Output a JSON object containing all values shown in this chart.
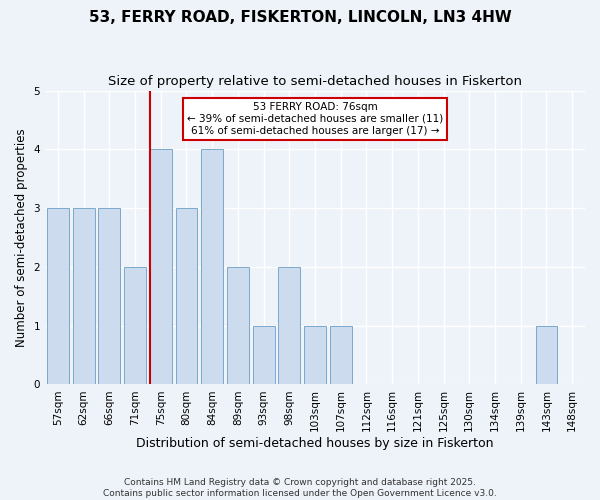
{
  "title": "53, FERRY ROAD, FISKERTON, LINCOLN, LN3 4HW",
  "subtitle": "Size of property relative to semi-detached houses in Fiskerton",
  "xlabel": "Distribution of semi-detached houses by size in Fiskerton",
  "ylabel": "Number of semi-detached properties",
  "categories": [
    "57sqm",
    "62sqm",
    "66sqm",
    "71sqm",
    "75sqm",
    "80sqm",
    "84sqm",
    "89sqm",
    "93sqm",
    "98sqm",
    "103sqm",
    "107sqm",
    "112sqm",
    "116sqm",
    "121sqm",
    "125sqm",
    "130sqm",
    "134sqm",
    "139sqm",
    "143sqm",
    "148sqm"
  ],
  "values": [
    3,
    3,
    3,
    2,
    4,
    3,
    4,
    2,
    1,
    2,
    1,
    1,
    0,
    0,
    0,
    0,
    0,
    0,
    0,
    1,
    0
  ],
  "bar_color": "#ccdcee",
  "bar_edge_color": "#7aa8cc",
  "background_color": "#eef3f9",
  "plot_bg_color": "#eef3f9",
  "property_line_idx": 4,
  "property_line_color": "#cc0000",
  "annotation_line1": "53 FERRY ROAD: 76sqm",
  "annotation_line2": "← 39% of semi-detached houses are smaller (11)",
  "annotation_line3": "61% of semi-detached houses are larger (17) →",
  "annotation_box_color": "#ffffff",
  "annotation_box_edge_color": "#cc0000",
  "ylim": [
    0,
    5
  ],
  "yticks": [
    0,
    1,
    2,
    3,
    4,
    5
  ],
  "footer_line1": "Contains HM Land Registry data © Crown copyright and database right 2025.",
  "footer_line2": "Contains public sector information licensed under the Open Government Licence v3.0.",
  "title_fontsize": 11,
  "subtitle_fontsize": 9.5,
  "xlabel_fontsize": 9,
  "ylabel_fontsize": 8.5,
  "tick_fontsize": 7.5,
  "footer_fontsize": 6.5,
  "annotation_fontsize": 7.5
}
